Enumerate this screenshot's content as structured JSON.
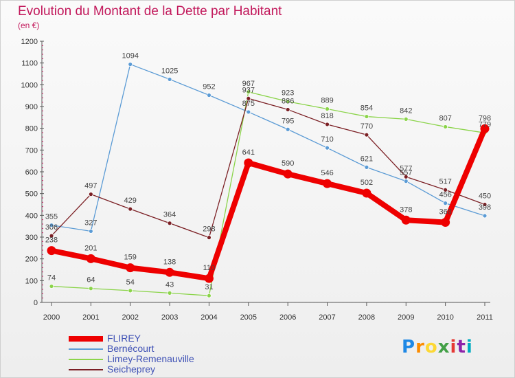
{
  "title": "Evolution du Montant de la Dette par Habitant",
  "subtitle": "(en €)",
  "logo_text": "Proxiti",
  "chart_data": {
    "type": "line",
    "title": "Evolution du Montant de la Dette par Habitant",
    "ylabel": "(en €)",
    "xlabel": "",
    "ylim": [
      0,
      1200
    ],
    "yticks": [
      0,
      100,
      200,
      300,
      400,
      500,
      600,
      700,
      800,
      900,
      1000,
      1100,
      1200
    ],
    "grid": false,
    "legend_position": "bottom-left",
    "categories": [
      "2000",
      "2001",
      "2002",
      "2003",
      "2004",
      "2005",
      "2006",
      "2007",
      "2008",
      "2009",
      "2010",
      "2011"
    ],
    "series": [
      {
        "name": "FLIREY",
        "color": "#ee0000",
        "emphasis": true,
        "values": [
          238,
          201,
          159,
          138,
          110,
          641,
          590,
          546,
          502,
          378,
          368,
          798
        ]
      },
      {
        "name": "Bernécourt",
        "color": "#5b9bd5",
        "emphasis": false,
        "values": [
          355,
          327,
          1094,
          1025,
          952,
          875,
          795,
          710,
          621,
          557,
          456,
          398
        ]
      },
      {
        "name": "Limey-Remenauville",
        "color": "#8bd44a",
        "emphasis": false,
        "values": [
          74,
          64,
          54,
          43,
          31,
          967,
          923,
          889,
          854,
          842,
          807,
          779
        ]
      },
      {
        "name": "Seicheprey",
        "color": "#7b1f24",
        "emphasis": false,
        "values": [
          306,
          497,
          429,
          364,
          298,
          937,
          886,
          818,
          770,
          577,
          517,
          450
        ]
      }
    ]
  }
}
